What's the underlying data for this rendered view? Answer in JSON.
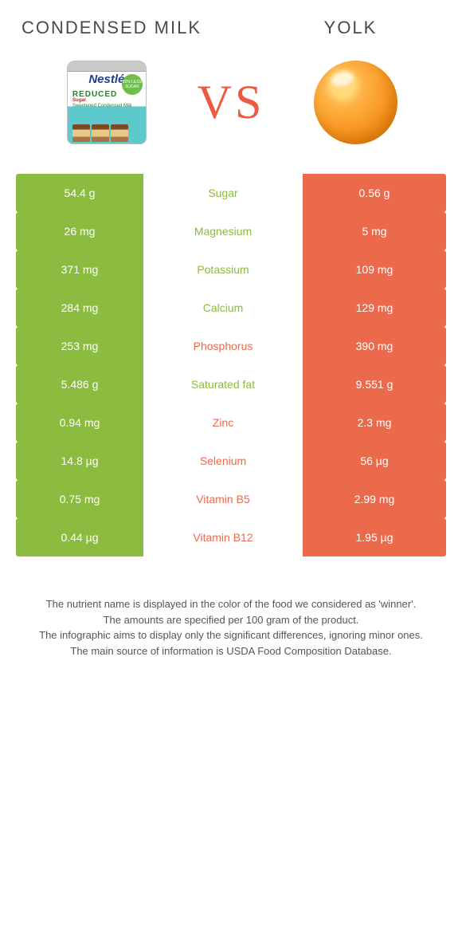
{
  "header": {
    "left_title": "CONDENSED MILK",
    "right_title": "YOLK",
    "vs": "VS"
  },
  "colors": {
    "green": "#8bbc3f",
    "orange": "#ec6a4c",
    "vs_text": "#ec5a41"
  },
  "can": {
    "brand": "Nestlé",
    "line1": "REDUCED",
    "line2": "Sugar",
    "line3": "Sweetened Condensed Milk",
    "badge": "25% LESS SUGAR"
  },
  "rows": [
    {
      "nutrient": "Sugar",
      "left": "54.4 g",
      "right": "0.56 g",
      "winner": "left"
    },
    {
      "nutrient": "Magnesium",
      "left": "26 mg",
      "right": "5 mg",
      "winner": "left"
    },
    {
      "nutrient": "Potassium",
      "left": "371 mg",
      "right": "109 mg",
      "winner": "left"
    },
    {
      "nutrient": "Calcium",
      "left": "284 mg",
      "right": "129 mg",
      "winner": "left"
    },
    {
      "nutrient": "Phosphorus",
      "left": "253 mg",
      "right": "390 mg",
      "winner": "right"
    },
    {
      "nutrient": "Saturated fat",
      "left": "5.486 g",
      "right": "9.551 g",
      "winner": "left"
    },
    {
      "nutrient": "Zinc",
      "left": "0.94 mg",
      "right": "2.3 mg",
      "winner": "right"
    },
    {
      "nutrient": "Selenium",
      "left": "14.8 µg",
      "right": "56 µg",
      "winner": "right"
    },
    {
      "nutrient": "Vitamin B5",
      "left": "0.75 mg",
      "right": "2.99 mg",
      "winner": "right"
    },
    {
      "nutrient": "Vitamin B12",
      "left": "0.44 µg",
      "right": "1.95 µg",
      "winner": "right"
    }
  ],
  "footer": {
    "l1": "The nutrient name is displayed in the color of the food we considered as 'winner'.",
    "l2": "The amounts are specified per 100 gram of the product.",
    "l3": "The infographic aims to display only the significant differences, ignoring minor ones.",
    "l4": "The main source of information is USDA Food Composition Database."
  }
}
